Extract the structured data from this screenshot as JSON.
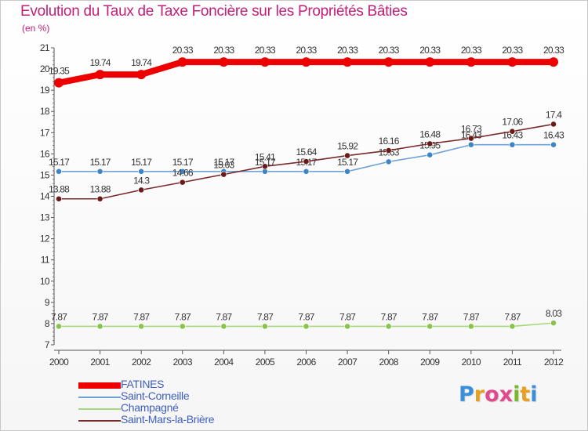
{
  "header": {
    "title": "Evolution du Taux de Taxe Foncière sur les Propriétés Bâties",
    "unit": "(en %)"
  },
  "brand": {
    "text": "Proxiti",
    "colors": [
      "#3a8fd8",
      "#e8a021",
      "#e14a8c",
      "#e14a8c",
      "#79b92b",
      "#e8a021",
      "#3a8fd8"
    ]
  },
  "chart_data": {
    "type": "line",
    "title": "Evolution du Taux de Taxe Foncière sur les Propriétés Bâties",
    "ylabel": "(en %)",
    "xlabel": "",
    "x": [
      "2000",
      "2001",
      "2002",
      "2003",
      "2004",
      "2005",
      "2006",
      "2007",
      "2008",
      "2009",
      "2010",
      "2011",
      "2012"
    ],
    "ylim": [
      7,
      21
    ],
    "yticks": [
      "7",
      "8",
      "9",
      "10",
      "11",
      "12",
      "13",
      "14",
      "15",
      "16",
      "17",
      "18",
      "19",
      "20",
      "21"
    ],
    "grid": false,
    "legend_position": "bottom-left",
    "series": [
      {
        "name": "FATINES",
        "color": "#ee0000",
        "style": "thick",
        "values": [
          19.35,
          19.74,
          19.74,
          20.33,
          20.33,
          20.33,
          20.33,
          20.33,
          20.33,
          20.33,
          20.33,
          20.33,
          20.33
        ],
        "labels": [
          "19.35",
          "19.74",
          "19.74",
          "20.33",
          "20.33",
          "20.33",
          "20.33",
          "20.33",
          "20.33",
          "20.33",
          "20.33",
          "20.33",
          "20.33"
        ]
      },
      {
        "name": "Saint-Corneille",
        "color": "#6fa2d6",
        "marker": "#3d86c6",
        "values": [
          15.17,
          15.17,
          15.17,
          15.17,
          15.17,
          15.17,
          15.17,
          15.17,
          15.63,
          15.95,
          16.43,
          16.43,
          16.43
        ],
        "labels": [
          "15.17",
          "15.17",
          "15.17",
          "15.17",
          "15.17",
          "15.17",
          "15.17",
          "15.17",
          "15.63",
          "15.95",
          "16.43",
          "16.43",
          "16.43"
        ]
      },
      {
        "name": "Champagné",
        "color": "#a8d67a",
        "marker": "#8bc34a",
        "values": [
          7.87,
          7.87,
          7.87,
          7.87,
          7.87,
          7.87,
          7.87,
          7.87,
          7.87,
          7.87,
          7.87,
          7.87,
          8.03
        ],
        "labels": [
          "7.87",
          "7.87",
          "7.87",
          "7.87",
          "7.87",
          "7.87",
          "7.87",
          "7.87",
          "7.87",
          "7.87",
          "7.87",
          "7.87",
          "8.03"
        ]
      },
      {
        "name": "Saint-Mars-la-Brière",
        "color": "#7a2b2b",
        "marker": "#6b1a1a",
        "values": [
          13.88,
          13.88,
          14.3,
          14.66,
          15.03,
          15.41,
          15.64,
          15.92,
          16.16,
          16.48,
          16.73,
          17.06,
          17.4
        ],
        "labels": [
          "13.88",
          "13.88",
          "14.3",
          "14.66",
          "15.03",
          "15.41",
          "15.64",
          "15.92",
          "16.16",
          "16.48",
          "16.73",
          "17.06",
          "17.4"
        ]
      }
    ]
  }
}
